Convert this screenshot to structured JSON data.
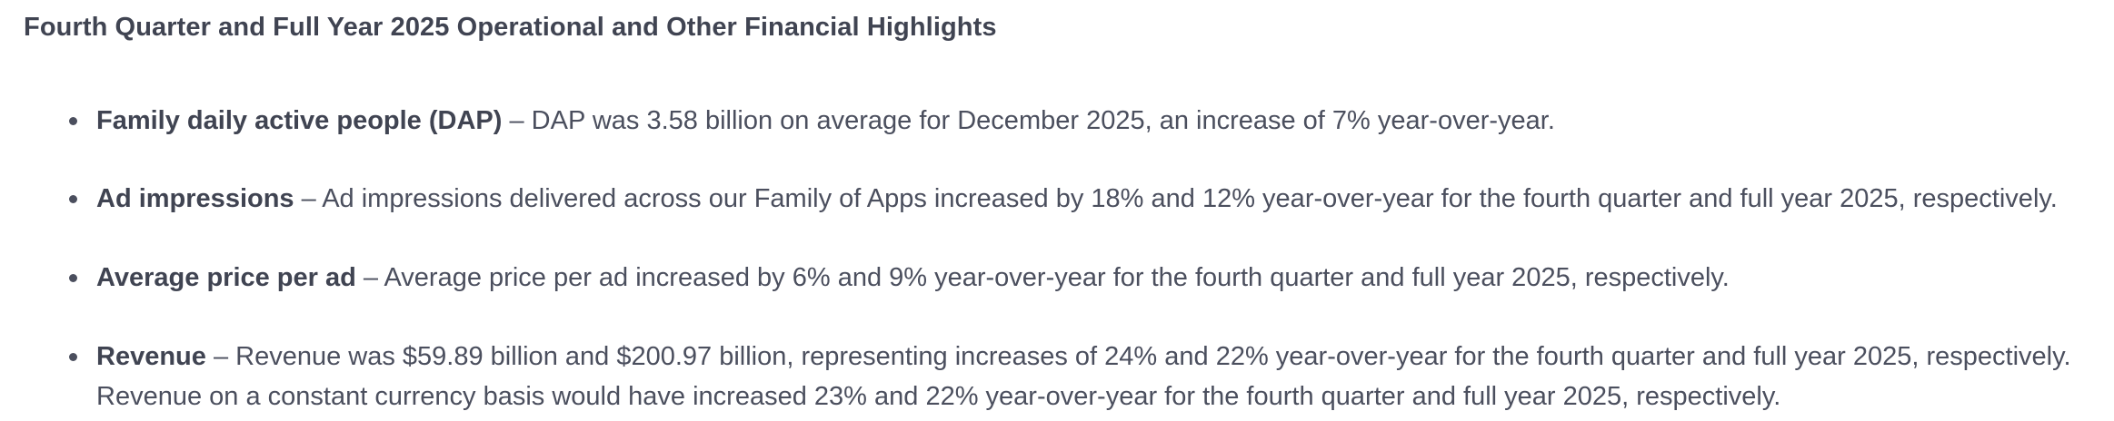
{
  "section": {
    "title": "Fourth Quarter and Full Year 2025 Operational and Other Financial Highlights"
  },
  "highlights": [
    {
      "term": "Family daily active people (DAP)",
      "description": " – DAP was 3.58 billion on average for December 2025, an increase of 7% year-over-year."
    },
    {
      "term": "Ad impressions",
      "description": " – Ad impressions delivered across our Family of Apps increased by 18% and 12% year-over-year for the fourth quarter and full year 2025, respectively."
    },
    {
      "term": "Average price per ad",
      "description": " – Average price per ad increased by 6% and 9% year-over-year for the fourth quarter and full year 2025, respectively."
    },
    {
      "term": "Revenue",
      "description": " – Revenue was $59.89 billion and $200.97 billion, representing increases of 24% and 22% year-over-year for the fourth quarter and full year 2025, respectively. Revenue on a constant currency basis would have increased 23% and 22% year-over-year for the fourth quarter and full year 2025, respectively."
    }
  ]
}
